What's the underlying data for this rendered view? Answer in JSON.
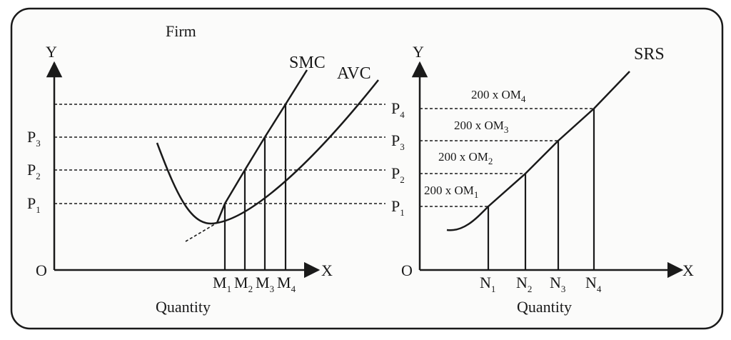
{
  "firm": {
    "title": "Firm",
    "y_axis_label": "Y",
    "x_axis_label": "X",
    "origin_label": "O",
    "smc_label": "SMC",
    "avc_label": "AVC",
    "price_labels": [
      {
        "letter": "P",
        "sub": "3"
      },
      {
        "letter": "P",
        "sub": "2"
      },
      {
        "letter": "P",
        "sub": "1"
      }
    ],
    "quantity_labels": [
      {
        "letter": "M",
        "sub": "1"
      },
      {
        "letter": "M",
        "sub": "2"
      },
      {
        "letter": "M",
        "sub": "3"
      },
      {
        "letter": "M",
        "sub": "4"
      }
    ],
    "quantity_caption": "Quantity"
  },
  "industry": {
    "y_axis_label": "Y",
    "x_axis_label": "X",
    "origin_label": "O",
    "srs_label": "SRS",
    "price_labels": [
      {
        "letter": "P",
        "sub": "4"
      },
      {
        "letter": "P",
        "sub": "3"
      },
      {
        "letter": "P",
        "sub": "2"
      },
      {
        "letter": "P",
        "sub": "1"
      }
    ],
    "annotations": [
      {
        "text": "200 x OM",
        "sub": "4"
      },
      {
        "text": "200 x OM",
        "sub": "3"
      },
      {
        "text": "200 x OM",
        "sub": "2"
      },
      {
        "text": "200 x OM",
        "sub": "1"
      }
    ],
    "quantity_labels": [
      {
        "letter": "N",
        "sub": "1"
      },
      {
        "letter": "N",
        "sub": "2"
      },
      {
        "letter": "N",
        "sub": "3"
      },
      {
        "letter": "N",
        "sub": "4"
      }
    ],
    "quantity_caption": "Quantity"
  }
}
